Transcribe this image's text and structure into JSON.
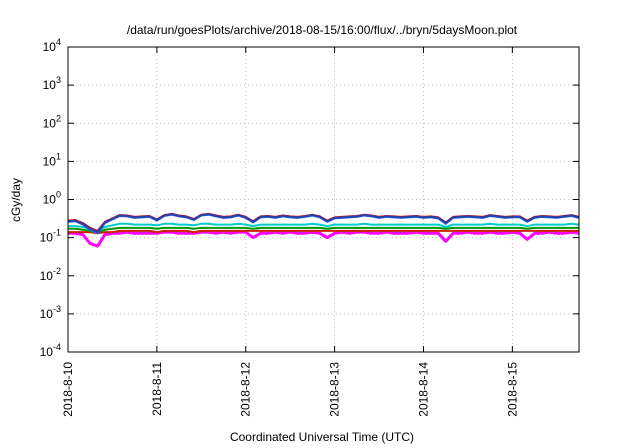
{
  "chart_data": {
    "type": "line",
    "title": "/data/run/goesPlots/archive/2018-08-15/16:00/flux/../bryn/5daysMoon.plot",
    "xlabel": "Coordinated Universal Time (UTC)",
    "ylabel": "cGy/day",
    "yscale": "log",
    "ylim": [
      0.0001,
      10000
    ],
    "xlim": [
      "2018-8-10",
      "2018-8-15 18:00"
    ],
    "grid": true,
    "legend": "none",
    "x_ticks": [
      "2018-8-10",
      "2018-8-11",
      "2018-8-12",
      "2018-8-13",
      "2018-8-14",
      "2018-8-15"
    ],
    "y_ticks": [
      {
        "value": 0.0001,
        "base": "10",
        "exp": "-4"
      },
      {
        "value": 0.001,
        "base": "10",
        "exp": "-3"
      },
      {
        "value": 0.01,
        "base": "10",
        "exp": "-2"
      },
      {
        "value": 0.1,
        "base": "10",
        "exp": "-1"
      },
      {
        "value": 1,
        "base": "10",
        "exp": "0"
      },
      {
        "value": 10,
        "base": "10",
        "exp": "1"
      },
      {
        "value": 100,
        "base": "10",
        "exp": "2"
      },
      {
        "value": 1000,
        "base": "10",
        "exp": "3"
      },
      {
        "value": 10000,
        "base": "10",
        "exp": "4"
      }
    ],
    "series": [
      {
        "color": "#ff00ff",
        "values": [
          0.13,
          0.13,
          0.12,
          0.07,
          0.06,
          0.12,
          0.13,
          0.13,
          0.14,
          0.13,
          0.13,
          0.13,
          0.13,
          0.14,
          0.14,
          0.13,
          0.13,
          0.13,
          0.14,
          0.14,
          0.13,
          0.14,
          0.13,
          0.14,
          0.14,
          0.1,
          0.13,
          0.13,
          0.14,
          0.13,
          0.14,
          0.13,
          0.13,
          0.14,
          0.13,
          0.1,
          0.13,
          0.14,
          0.13,
          0.14,
          0.14,
          0.13,
          0.13,
          0.14,
          0.13,
          0.13,
          0.13,
          0.14,
          0.13,
          0.13,
          0.13,
          0.08,
          0.13,
          0.13,
          0.14,
          0.13,
          0.13,
          0.14,
          0.13,
          0.13,
          0.14,
          0.13,
          0.09,
          0.13,
          0.13,
          0.14,
          0.13,
          0.13,
          0.14,
          0.13
        ]
      },
      {
        "color": "#cc2200",
        "values": [
          0.14,
          0.14,
          0.14,
          0.14,
          0.13,
          0.14,
          0.14,
          0.15,
          0.15,
          0.15,
          0.15,
          0.15,
          0.14,
          0.15,
          0.15,
          0.15,
          0.15,
          0.14,
          0.15,
          0.15,
          0.15,
          0.15,
          0.15,
          0.15,
          0.15,
          0.15,
          0.15,
          0.15,
          0.15,
          0.15,
          0.15,
          0.15,
          0.15,
          0.15,
          0.15,
          0.15,
          0.15,
          0.15,
          0.15,
          0.15,
          0.15,
          0.15,
          0.15,
          0.15,
          0.15,
          0.15,
          0.15,
          0.15,
          0.15,
          0.15,
          0.15,
          0.15,
          0.15,
          0.15,
          0.15,
          0.15,
          0.15,
          0.15,
          0.15,
          0.15,
          0.15,
          0.15,
          0.15,
          0.15,
          0.15,
          0.15,
          0.15,
          0.15,
          0.15,
          0.15
        ]
      },
      {
        "color": "#009900",
        "values": [
          0.17,
          0.17,
          0.16,
          0.15,
          0.14,
          0.16,
          0.17,
          0.18,
          0.18,
          0.18,
          0.18,
          0.18,
          0.17,
          0.18,
          0.18,
          0.18,
          0.18,
          0.17,
          0.18,
          0.18,
          0.18,
          0.18,
          0.18,
          0.18,
          0.18,
          0.17,
          0.18,
          0.18,
          0.18,
          0.18,
          0.18,
          0.18,
          0.18,
          0.18,
          0.18,
          0.17,
          0.18,
          0.18,
          0.18,
          0.18,
          0.18,
          0.18,
          0.18,
          0.18,
          0.18,
          0.18,
          0.18,
          0.18,
          0.18,
          0.18,
          0.18,
          0.17,
          0.18,
          0.18,
          0.18,
          0.18,
          0.18,
          0.18,
          0.18,
          0.18,
          0.18,
          0.18,
          0.17,
          0.18,
          0.18,
          0.18,
          0.18,
          0.18,
          0.18,
          0.18
        ]
      },
      {
        "color": "#00cccc",
        "values": [
          0.2,
          0.2,
          0.19,
          0.17,
          0.15,
          0.19,
          0.21,
          0.23,
          0.23,
          0.22,
          0.22,
          0.22,
          0.21,
          0.23,
          0.23,
          0.22,
          0.22,
          0.21,
          0.23,
          0.23,
          0.22,
          0.22,
          0.22,
          0.23,
          0.22,
          0.2,
          0.22,
          0.22,
          0.22,
          0.22,
          0.22,
          0.22,
          0.22,
          0.23,
          0.22,
          0.2,
          0.22,
          0.22,
          0.22,
          0.22,
          0.23,
          0.22,
          0.22,
          0.22,
          0.22,
          0.22,
          0.22,
          0.22,
          0.22,
          0.22,
          0.22,
          0.19,
          0.22,
          0.22,
          0.22,
          0.22,
          0.22,
          0.23,
          0.22,
          0.22,
          0.22,
          0.22,
          0.2,
          0.22,
          0.22,
          0.22,
          0.22,
          0.22,
          0.23,
          0.22
        ]
      },
      {
        "color": "#3366ff",
        "values": [
          0.26,
          0.27,
          0.22,
          0.16,
          0.13,
          0.24,
          0.3,
          0.37,
          0.36,
          0.33,
          0.34,
          0.35,
          0.28,
          0.37,
          0.4,
          0.36,
          0.34,
          0.29,
          0.38,
          0.4,
          0.36,
          0.33,
          0.34,
          0.38,
          0.33,
          0.25,
          0.34,
          0.35,
          0.33,
          0.36,
          0.34,
          0.33,
          0.35,
          0.38,
          0.34,
          0.26,
          0.32,
          0.33,
          0.34,
          0.35,
          0.38,
          0.36,
          0.33,
          0.35,
          0.34,
          0.33,
          0.34,
          0.35,
          0.33,
          0.34,
          0.32,
          0.23,
          0.33,
          0.34,
          0.35,
          0.34,
          0.33,
          0.37,
          0.35,
          0.33,
          0.34,
          0.34,
          0.26,
          0.33,
          0.35,
          0.34,
          0.33,
          0.35,
          0.37,
          0.33
        ]
      },
      {
        "color": "#dd0000",
        "values": [
          0.28,
          0.29,
          0.24,
          0.18,
          0.15,
          0.26,
          0.32,
          0.39,
          0.38,
          0.35,
          0.36,
          0.37,
          0.3,
          0.39,
          0.42,
          0.38,
          0.36,
          0.31,
          0.4,
          0.42,
          0.38,
          0.35,
          0.36,
          0.4,
          0.35,
          0.27,
          0.36,
          0.37,
          0.35,
          0.38,
          0.36,
          0.35,
          0.37,
          0.4,
          0.36,
          0.28,
          0.34,
          0.35,
          0.36,
          0.37,
          0.4,
          0.38,
          0.35,
          0.37,
          0.36,
          0.35,
          0.36,
          0.37,
          0.35,
          0.36,
          0.34,
          0.25,
          0.35,
          0.36,
          0.37,
          0.36,
          0.35,
          0.39,
          0.37,
          0.35,
          0.36,
          0.36,
          0.28,
          0.35,
          0.37,
          0.36,
          0.35,
          0.37,
          0.39,
          0.35
        ]
      },
      {
        "color": "#2244aa",
        "values": [
          0.27,
          0.28,
          0.23,
          0.17,
          0.14,
          0.25,
          0.31,
          0.38,
          0.37,
          0.34,
          0.35,
          0.36,
          0.29,
          0.38,
          0.41,
          0.37,
          0.35,
          0.3,
          0.39,
          0.41,
          0.37,
          0.34,
          0.35,
          0.39,
          0.34,
          0.26,
          0.35,
          0.36,
          0.34,
          0.37,
          0.35,
          0.34,
          0.36,
          0.39,
          0.35,
          0.27,
          0.33,
          0.34,
          0.35,
          0.36,
          0.39,
          0.37,
          0.34,
          0.36,
          0.35,
          0.34,
          0.35,
          0.36,
          0.34,
          0.35,
          0.33,
          0.24,
          0.34,
          0.35,
          0.36,
          0.35,
          0.34,
          0.38,
          0.36,
          0.34,
          0.35,
          0.35,
          0.27,
          0.34,
          0.36,
          0.35,
          0.34,
          0.36,
          0.38,
          0.34
        ]
      }
    ]
  }
}
